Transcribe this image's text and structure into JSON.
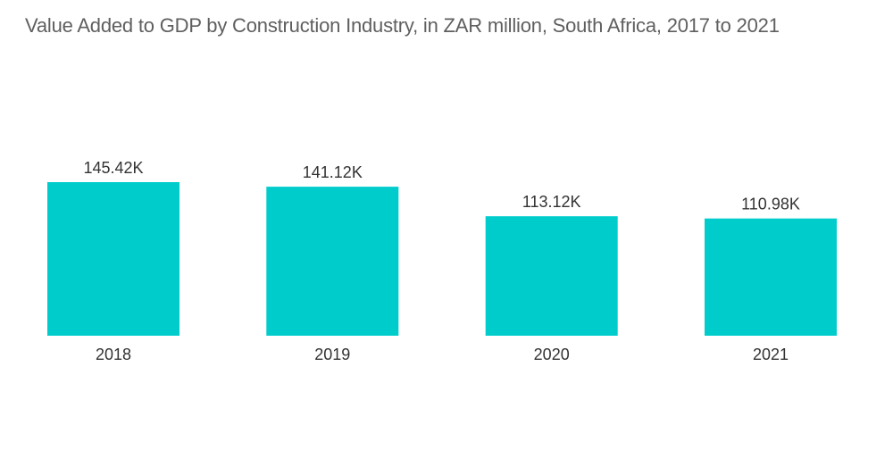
{
  "chart_data": {
    "type": "bar",
    "title": "Value Added to GDP by Construction Industry, in ZAR million, South Africa, 2017 to 2021",
    "categories": [
      "2018",
      "2019",
      "2020",
      "2021"
    ],
    "values": [
      145.42,
      141.12,
      113.12,
      110.98
    ],
    "data_labels": [
      "145.42K",
      "141.12K",
      "113.12K",
      "110.98K"
    ],
    "xlabel": "",
    "ylabel": "",
    "ylim": [
      0,
      145.42
    ],
    "grid": false,
    "legend": "none",
    "bar_color": "#00cccc"
  }
}
